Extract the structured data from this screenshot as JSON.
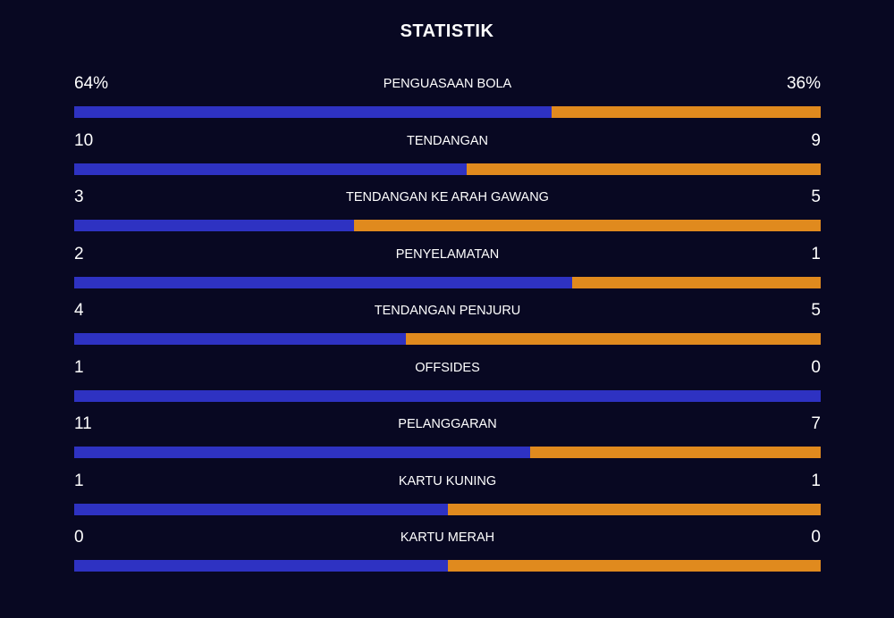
{
  "title": "STATISTIK",
  "colors": {
    "background": "#080822",
    "home": "#2e32c2",
    "away": "#e08a1e"
  },
  "stats": [
    {
      "label": "PENGUASAAN BOLA",
      "home": "64%",
      "away": "36%",
      "home_share": 0.64
    },
    {
      "label": "TENDANGAN",
      "home": "10",
      "away": "9",
      "home_share": 0.526
    },
    {
      "label": "TENDANGAN KE ARAH GAWANG",
      "home": "3",
      "away": "5",
      "home_share": 0.375
    },
    {
      "label": "PENYELAMATAN",
      "home": "2",
      "away": "1",
      "home_share": 0.667
    },
    {
      "label": "TENDANGAN PENJURU",
      "home": "4",
      "away": "5",
      "home_share": 0.444
    },
    {
      "label": "OFFSIDES",
      "home": "1",
      "away": "0",
      "home_share": 1.0
    },
    {
      "label": "PELANGGARAN",
      "home": "11",
      "away": "7",
      "home_share": 0.611
    },
    {
      "label": "KARTU KUNING",
      "home": "1",
      "away": "1",
      "home_share": 0.5
    },
    {
      "label": "KARTU MERAH",
      "home": "0",
      "away": "0",
      "home_share": 0.5
    }
  ]
}
